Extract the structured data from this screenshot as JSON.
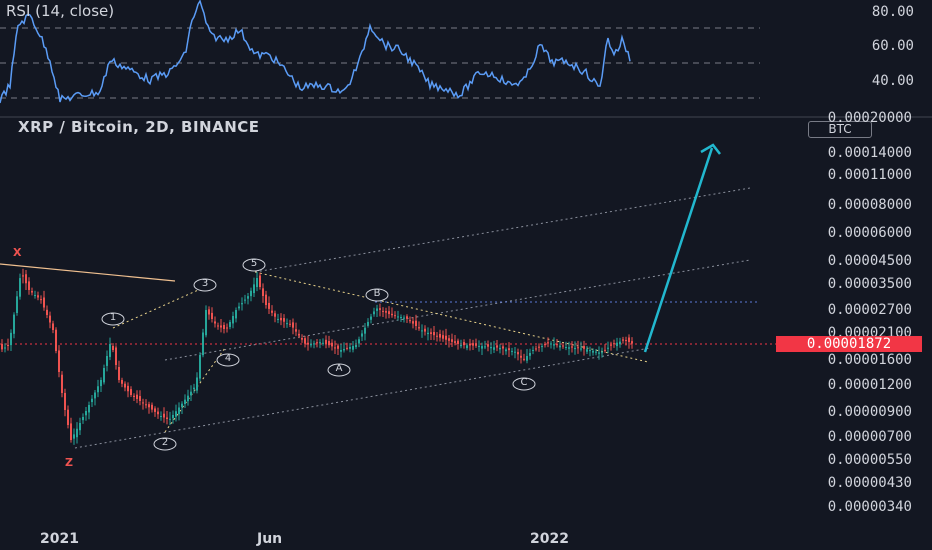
{
  "rsi_pane": {
    "title": "RSI (14, close)",
    "levels": [
      "80.00",
      "60.00",
      "40.00"
    ]
  },
  "main_pane": {
    "title": "XRP / Bitcoin, 2D, BINANCE",
    "currency_badge": "BTC",
    "current_price": "0.00001872",
    "price_scale": [
      "0.00020000",
      "0.00014000",
      "0.00011000",
      "0.00008000",
      "0.00006000",
      "0.00004500",
      "0.00003500",
      "0.00002700",
      "0.00002100",
      "0.00001600",
      "0.00001200",
      "0.00000900",
      "0.00000700",
      "0.00000550",
      "0.00000430",
      "0.00000340"
    ]
  },
  "time_axis": [
    "2021",
    "Jun",
    "2022"
  ],
  "wave_labels": {
    "x": "X",
    "z": "Z",
    "w1": "1",
    "w2": "2",
    "w3": "3",
    "w4": "4",
    "w5": "5",
    "a": "A",
    "b": "B",
    "c": "C"
  },
  "colors": {
    "background": "#131722",
    "up": "#26a69a",
    "down": "#ef5350",
    "rsi": "#5b9cf6",
    "arrow": "#22b8cf",
    "price_line": "#f23645"
  }
}
